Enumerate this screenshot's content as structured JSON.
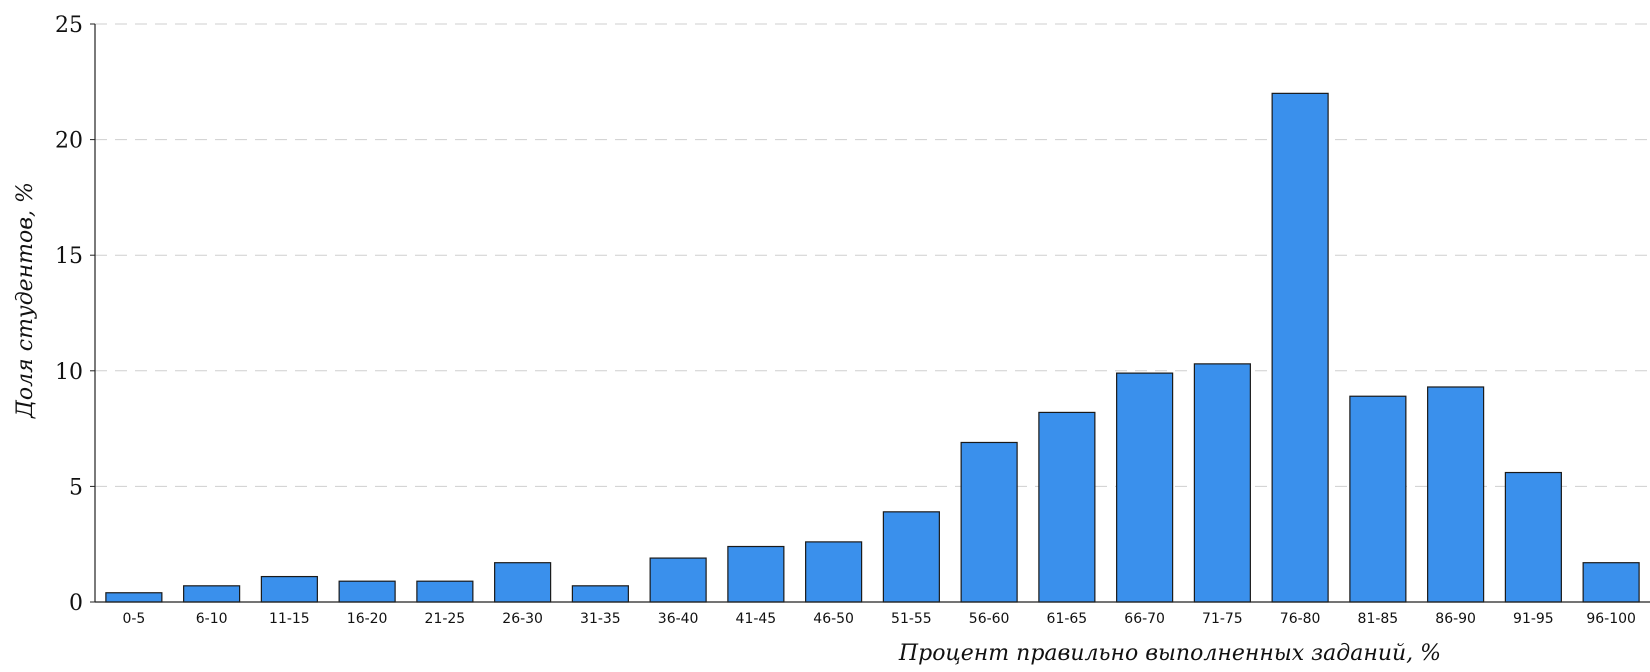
{
  "chart_data": {
    "type": "bar",
    "title": "",
    "xlabel": "Процент правильно выполненных заданий, %",
    "ylabel": "Доля студентов, %",
    "categories": [
      "0-5",
      "6-10",
      "11-15",
      "16-20",
      "21-25",
      "26-30",
      "31-35",
      "36-40",
      "41-45",
      "46-50",
      "51-55",
      "56-60",
      "61-65",
      "66-70",
      "71-75",
      "76-80",
      "81-85",
      "86-90",
      "91-95",
      "96-100"
    ],
    "values": [
      0.4,
      0.7,
      1.1,
      0.9,
      0.9,
      1.7,
      0.7,
      1.9,
      2.4,
      2.6,
      3.9,
      6.9,
      8.2,
      9.9,
      10.3,
      22.0,
      8.9,
      9.3,
      5.6,
      1.7
    ],
    "ylim": [
      0,
      25
    ],
    "yticks": [
      0,
      5,
      10,
      15,
      20,
      25
    ],
    "grid": "horizontal dashed",
    "bar_color": "#3a90ec",
    "bar_edge_color": "#1a1a1a"
  }
}
